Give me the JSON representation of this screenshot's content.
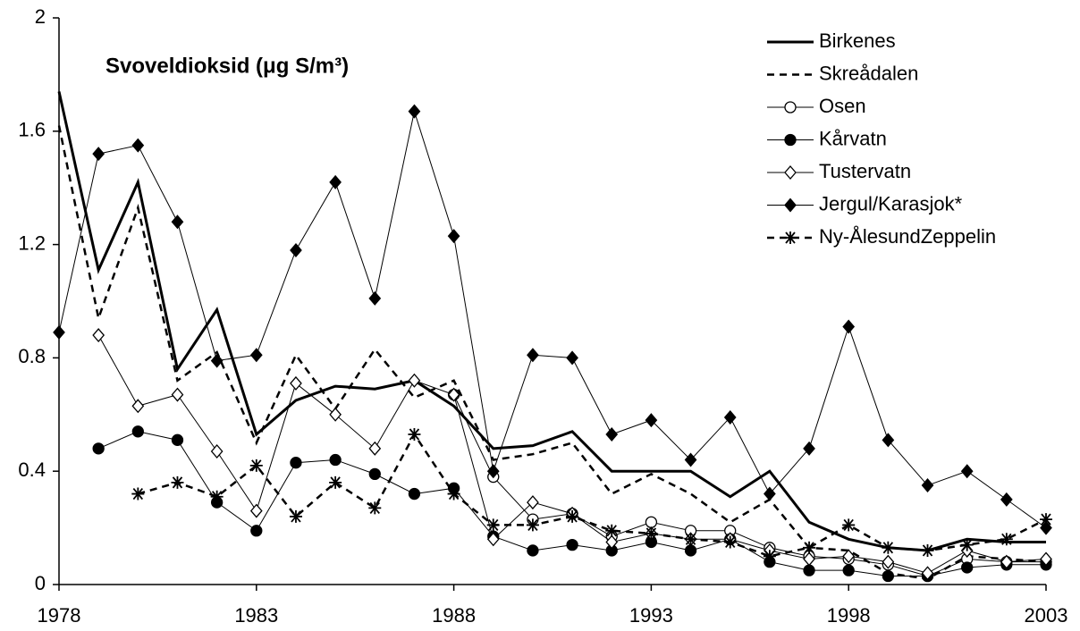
{
  "chart_data": {
    "type": "line",
    "title": "Svoveldioksid (μg S/m³)",
    "x": [
      1978,
      1979,
      1980,
      1981,
      1982,
      1983,
      1984,
      1985,
      1986,
      1987,
      1988,
      1989,
      1990,
      1991,
      1992,
      1993,
      1994,
      1995,
      1996,
      1997,
      1998,
      1999,
      2000,
      2001,
      2002,
      2003
    ],
    "xlim": [
      1978,
      2003
    ],
    "xticks": [
      1978,
      1983,
      1988,
      1993,
      1998,
      2003
    ],
    "ylim": [
      0,
      2
    ],
    "yticks": [
      0,
      0.4,
      0.8,
      1.2,
      1.6,
      2
    ],
    "legend": "top-right",
    "grid": false,
    "series": [
      {
        "name": "Birkenes",
        "color": "#000000",
        "width": 3,
        "dash": "solid",
        "marker": "none",
        "values": [
          1.74,
          1.11,
          1.42,
          0.76,
          0.97,
          0.53,
          0.65,
          0.7,
          0.69,
          0.72,
          0.63,
          0.48,
          0.49,
          0.54,
          0.4,
          0.4,
          0.4,
          0.31,
          0.4,
          0.22,
          0.16,
          0.13,
          0.12,
          0.16,
          0.15,
          0.15
        ]
      },
      {
        "name": "Skreådalen",
        "color": "#000000",
        "width": 2.5,
        "dash": "dashed",
        "marker": "none",
        "values": [
          1.62,
          0.94,
          1.33,
          0.72,
          0.82,
          0.5,
          0.81,
          0.62,
          0.83,
          0.66,
          0.72,
          0.44,
          0.46,
          0.5,
          0.32,
          0.39,
          0.32,
          0.22,
          0.3,
          0.13,
          0.12,
          0.04,
          0.02,
          0.1,
          0.09,
          0.08
        ]
      },
      {
        "name": "Osen",
        "color": "#000000",
        "width": 1,
        "dash": "solid",
        "marker": "circle-open",
        "values": [
          null,
          null,
          null,
          null,
          null,
          null,
          null,
          null,
          null,
          null,
          0.67,
          0.38,
          0.23,
          0.25,
          0.17,
          0.22,
          0.19,
          0.19,
          0.13,
          0.1,
          0.09,
          0.07,
          0.03,
          0.09,
          0.08,
          0.08
        ]
      },
      {
        "name": "Kårvatn",
        "color": "#000000",
        "width": 1,
        "dash": "solid",
        "marker": "circle-filled",
        "values": [
          null,
          0.48,
          0.54,
          0.51,
          0.29,
          0.19,
          0.43,
          0.44,
          0.39,
          0.32,
          0.34,
          0.17,
          0.12,
          0.14,
          0.12,
          0.15,
          0.12,
          0.16,
          0.08,
          0.05,
          0.05,
          0.03,
          0.03,
          0.06,
          0.07,
          0.07
        ]
      },
      {
        "name": "Tustervatn",
        "color": "#000000",
        "width": 1,
        "dash": "solid",
        "marker": "diamond-open",
        "values": [
          null,
          0.88,
          0.63,
          0.67,
          0.47,
          0.26,
          0.71,
          0.6,
          0.48,
          0.72,
          0.67,
          0.16,
          0.29,
          0.25,
          0.15,
          0.18,
          0.16,
          0.16,
          0.12,
          0.09,
          0.1,
          0.08,
          0.04,
          0.12,
          0.08,
          0.09
        ]
      },
      {
        "name": "Jergul/Karasjok*",
        "color": "#000000",
        "width": 1,
        "dash": "solid",
        "marker": "diamond-filled",
        "values": [
          0.89,
          1.52,
          1.55,
          1.28,
          0.79,
          0.81,
          1.18,
          1.42,
          1.01,
          1.67,
          1.23,
          0.4,
          0.81,
          0.8,
          0.53,
          0.58,
          0.44,
          0.59,
          0.32,
          0.48,
          0.91,
          0.51,
          0.35,
          0.4,
          0.3,
          0.2
        ]
      },
      {
        "name": "Ny-ÅlesundZeppelin",
        "color": "#000000",
        "width": 2.5,
        "dash": "dashed",
        "marker": "asterisk",
        "values": [
          null,
          null,
          0.32,
          0.36,
          0.31,
          0.42,
          0.24,
          0.36,
          0.27,
          0.53,
          0.32,
          0.21,
          0.21,
          0.24,
          0.19,
          0.18,
          0.16,
          0.15,
          0.1,
          0.13,
          0.21,
          0.13,
          0.12,
          0.14,
          0.16,
          0.23
        ]
      }
    ]
  }
}
